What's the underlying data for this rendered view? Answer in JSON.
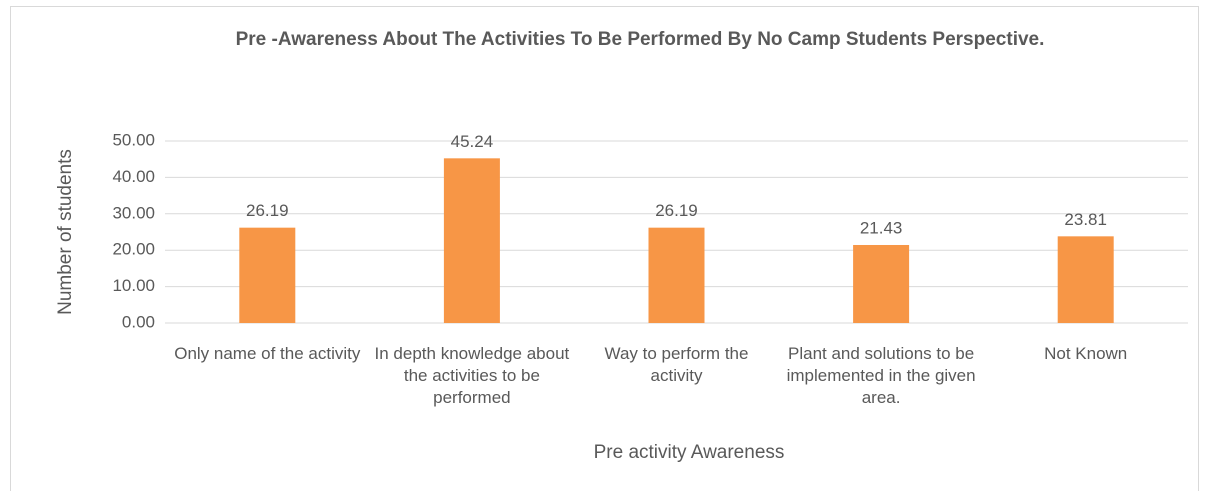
{
  "chart_data": {
    "type": "bar",
    "title": "Pre -Awareness About The Activities To Be Performed By No Camp Students Perspective.",
    "x_label": "Pre activity Awareness",
    "y_label": "Number of students",
    "categories": [
      "Only name of the activity",
      "In depth knowledge about the activities to be performed",
      "Way to perform the activity",
      "Plant and solutions to be implemented in the given area.",
      "Not Known"
    ],
    "values": [
      26.19,
      45.24,
      26.19,
      21.43,
      23.81
    ],
    "color": "#f79646",
    "ylim": [
      0,
      50
    ],
    "yticks": [
      {
        "value": 0,
        "label": "0.00"
      },
      {
        "value": 10,
        "label": "10.00"
      },
      {
        "value": 20,
        "label": "20.00"
      },
      {
        "value": 30,
        "label": "30.00"
      },
      {
        "value": 40,
        "label": "40.00"
      },
      {
        "value": 50,
        "label": "50.00"
      }
    ],
    "grid": true
  }
}
